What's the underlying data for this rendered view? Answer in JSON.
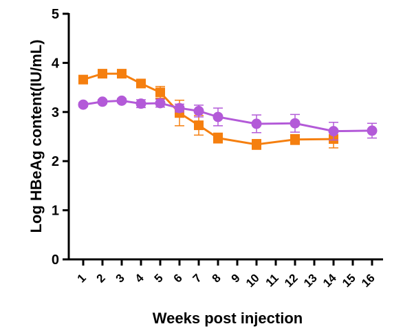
{
  "chart_data": {
    "type": "line",
    "title": "",
    "xlabel": "Weeks post injection",
    "ylabel": "Log HBeAg content(IU/mL)",
    "ylim": [
      0,
      5
    ],
    "yticks": [
      "0",
      "1",
      "2",
      "3",
      "4",
      "5"
    ],
    "categories": [
      "1",
      "2",
      "3",
      "4",
      "5",
      "6",
      "7",
      "8",
      "9",
      "10",
      "11",
      "12",
      "13",
      "14",
      "15",
      "16"
    ],
    "grid": false,
    "legend": "none",
    "series": [
      {
        "color": "#F57F0F",
        "marker": "square",
        "points": [
          {
            "x": "1",
            "y": 3.66,
            "err": 0.05
          },
          {
            "x": "2",
            "y": 3.78,
            "err": 0.05
          },
          {
            "x": "3",
            "y": 3.78,
            "err": 0.05
          },
          {
            "x": "4",
            "y": 3.58,
            "err": 0.05
          },
          {
            "x": "5",
            "y": 3.4,
            "err": 0.12
          },
          {
            "x": "6",
            "y": 2.98,
            "err": 0.26
          },
          {
            "x": "7",
            "y": 2.73,
            "err": 0.2
          },
          {
            "x": "8",
            "y": 2.47,
            "err": 0.1
          },
          {
            "x": "10",
            "y": 2.34,
            "err": 0.1
          },
          {
            "x": "12",
            "y": 2.44,
            "err": 0.1
          },
          {
            "x": "14",
            "y": 2.45,
            "err": 0.18
          }
        ]
      },
      {
        "color": "#B35AD8",
        "marker": "circle",
        "points": [
          {
            "x": "1",
            "y": 3.15,
            "err": 0.04
          },
          {
            "x": "2",
            "y": 3.21,
            "err": 0.04
          },
          {
            "x": "3",
            "y": 3.23,
            "err": 0.04
          },
          {
            "x": "4",
            "y": 3.17,
            "err": 0.08
          },
          {
            "x": "5",
            "y": 3.18,
            "err": 0.08
          },
          {
            "x": "6",
            "y": 3.08,
            "err": 0.08
          },
          {
            "x": "7",
            "y": 3.02,
            "err": 0.12
          },
          {
            "x": "8",
            "y": 2.9,
            "err": 0.18
          },
          {
            "x": "10",
            "y": 2.76,
            "err": 0.18
          },
          {
            "x": "12",
            "y": 2.77,
            "err": 0.18
          },
          {
            "x": "14",
            "y": 2.61,
            "err": 0.18
          },
          {
            "x": "16",
            "y": 2.62,
            "err": 0.15
          }
        ]
      }
    ]
  }
}
